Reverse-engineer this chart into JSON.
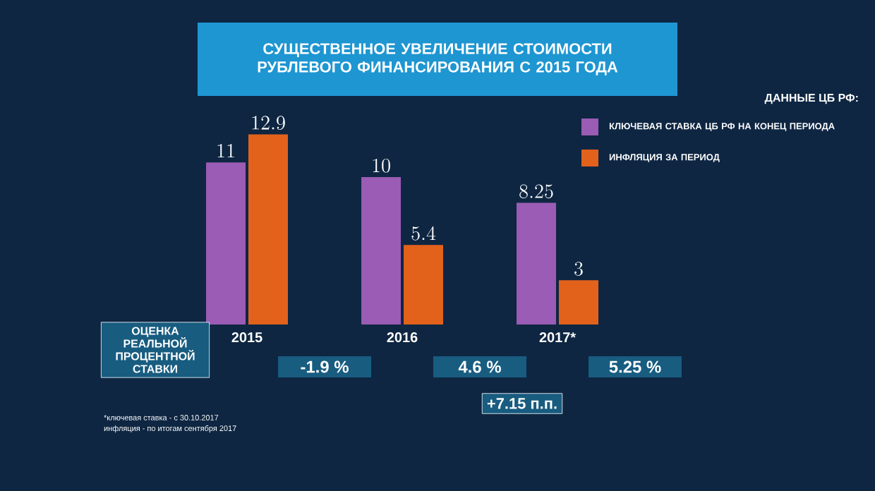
{
  "chart_data": {
    "type": "bar",
    "title": "СУЩЕСТВЕННОЕ УВЕЛИЧЕНИЕ СТОИМОСТИ РУБЛЕВОГО ФИНАНСИРОВАНИЯ С 2015 ГОДА",
    "legend_title": "ДАННЫЕ ЦБ РФ:",
    "categories": [
      "2015",
      "2016",
      "2017*"
    ],
    "series": [
      {
        "name": "КЛЮЧЕВАЯ СТАВКА ЦБ РФ НА КОНЕЦ ПЕРИОДА",
        "color": "#9a5cb4",
        "values": [
          11,
          10,
          8.25
        ]
      },
      {
        "name": "ИНФЛЯЦИЯ ЗА ПЕРИОД",
        "color": "#e2621c",
        "values": [
          12.9,
          5.4,
          3
        ]
      }
    ],
    "data_labels": true,
    "legend": "top right",
    "annotations": [
      "ОЦЕНКА РЕАЛЬНОЙ ПРОЦЕНТНОЙ СТАВКИ",
      "-1.9 %",
      "4.6 %",
      "5.25 %",
      "+7.15 п.п.",
      "*ключевая ставка - с 30.10.2017",
      "инфляция - по итогам сентября 2017"
    ]
  }
}
